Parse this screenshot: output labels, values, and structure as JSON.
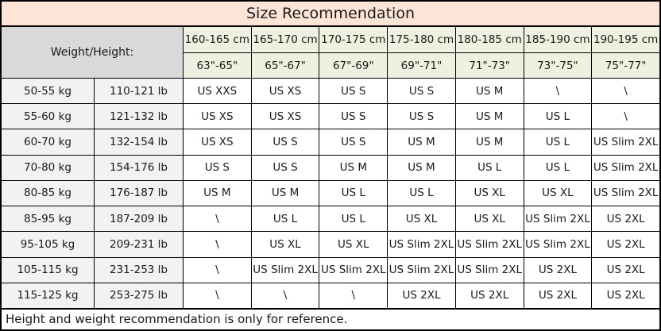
{
  "title": "Size Recommendation",
  "footer_note": "Height and weight recommendation is only for reference.",
  "colors": {
    "title_bg": "#FCE4D6",
    "corner_bg": "#D9D9D9",
    "height_header_bg": "#ECF1E0",
    "weight_cell_bg": "#F2F2F2",
    "border": "#000000"
  },
  "table": {
    "corner_label": "Weight/Height:",
    "height_headers": [
      {
        "cm": "160-165 cm",
        "inch": "63\"-65\""
      },
      {
        "cm": "165-170 cm",
        "inch": "65\"-67\""
      },
      {
        "cm": "170-175 cm",
        "inch": "67\"-69\""
      },
      {
        "cm": "175-180 cm",
        "inch": "69\"-71\""
      },
      {
        "cm": "180-185 cm",
        "inch": "71\"-73\""
      },
      {
        "cm": "185-190 cm",
        "inch": "73\"-75\""
      },
      {
        "cm": "190-195 cm",
        "inch": "75\"-77\""
      }
    ],
    "rows": [
      {
        "kg": "50-55 kg",
        "lb": "110-121 lb",
        "sizes": [
          "US XXS",
          "US XS",
          "US S",
          "US S",
          "US M",
          "\\",
          "\\"
        ]
      },
      {
        "kg": "55-60 kg",
        "lb": "121-132 lb",
        "sizes": [
          "US XS",
          "US XS",
          "US S",
          "US S",
          "US M",
          "US L",
          "\\"
        ]
      },
      {
        "kg": "60-70 kg",
        "lb": "132-154 lb",
        "sizes": [
          "US XS",
          "US S",
          "US S",
          "US M",
          "US M",
          "US L",
          "US Slim 2XL"
        ]
      },
      {
        "kg": "70-80 kg",
        "lb": "154-176 lb",
        "sizes": [
          "US S",
          "US S",
          "US M",
          "US M",
          "US L",
          "US L",
          "US Slim 2XL"
        ]
      },
      {
        "kg": "80-85 kg",
        "lb": "176-187 lb",
        "sizes": [
          "US M",
          "US M",
          "US L",
          "US L",
          "US XL",
          "US XL",
          "US Slim 2XL"
        ]
      },
      {
        "kg": "85-95 kg",
        "lb": "187-209 lb",
        "sizes": [
          "\\",
          "US L",
          "US L",
          "US XL",
          "US XL",
          "US Slim 2XL",
          "US 2XL"
        ]
      },
      {
        "kg": "95-105 kg",
        "lb": "209-231 lb",
        "sizes": [
          "\\",
          "US XL",
          "US XL",
          "US Slim 2XL",
          "US Slim 2XL",
          "US Slim 2XL",
          "US 2XL"
        ]
      },
      {
        "kg": "105-115 kg",
        "lb": "231-253 lb",
        "sizes": [
          "\\",
          "US Slim 2XL",
          "US Slim 2XL",
          "US Slim 2XL",
          "US Slim 2XL",
          "US 2XL",
          "US 2XL"
        ]
      },
      {
        "kg": "115-125 kg",
        "lb": "253-275 lb",
        "sizes": [
          "\\",
          "\\",
          "\\",
          "US 2XL",
          "US 2XL",
          "US 2XL",
          "US 2XL"
        ]
      }
    ]
  }
}
